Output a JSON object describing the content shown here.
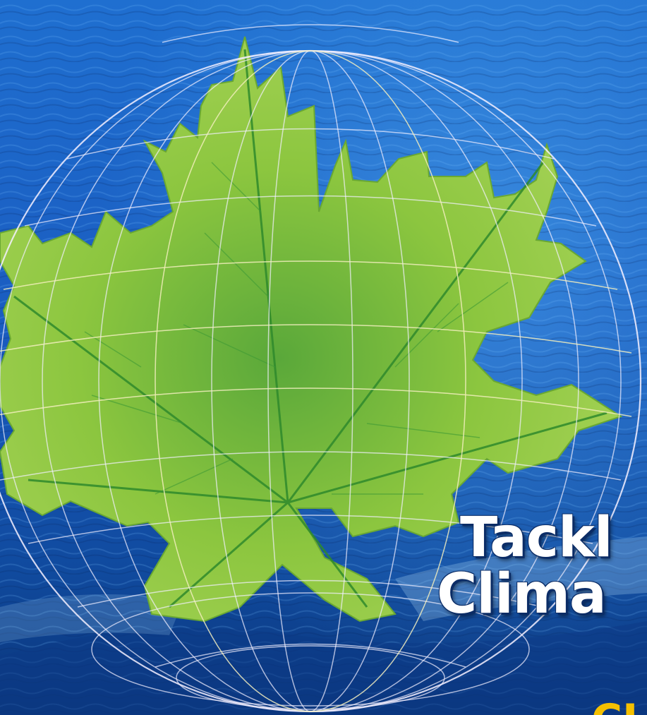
{
  "cover": {
    "title_line_1": "Tackl",
    "title_line_2": "Clima",
    "subtitle_fragment": "CL"
  },
  "imagery": {
    "background": "ocean-water",
    "foreground": "maple-leaf",
    "overlay": "wireframe-globe"
  },
  "colors": {
    "water_dark": "#0b3f8f",
    "water_light": "#2f8fe0",
    "leaf_green": "#7fc63a",
    "leaf_dark": "#2f8a2c",
    "globe_line": "#f1f1f1",
    "title_text": "#ffffff",
    "subtitle_text": "#f5c000"
  }
}
